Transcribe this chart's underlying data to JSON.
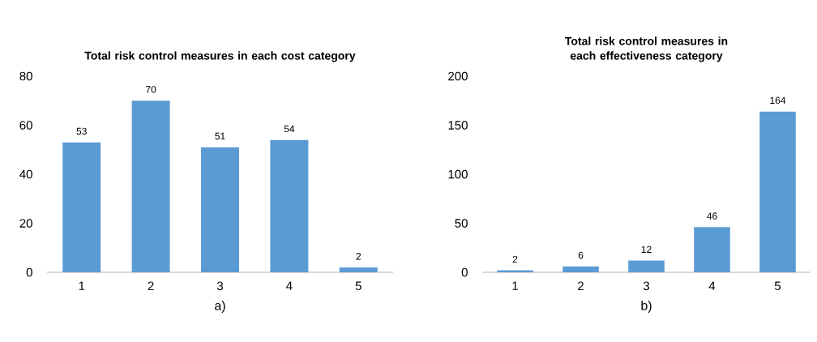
{
  "chart_data": [
    {
      "type": "bar",
      "title": "Total risk control measures in each cost category",
      "xlabel": "a)",
      "categories": [
        "1",
        "2",
        "3",
        "4",
        "5"
      ],
      "values": [
        53,
        70,
        51,
        54,
        2
      ],
      "color": "#5b9bd5",
      "ylim": [
        0,
        80
      ],
      "yticks": [
        0,
        20,
        40,
        60,
        80
      ],
      "data_labels": true,
      "grid": false
    },
    {
      "type": "bar",
      "title": "Total risk control measures in each effectiveness category",
      "xlabel": "b)",
      "categories": [
        "1",
        "2",
        "3",
        "4",
        "5"
      ],
      "values": [
        2,
        6,
        12,
        46,
        164
      ],
      "color": "#5b9bd5",
      "ylim": [
        0,
        200
      ],
      "yticks": [
        0,
        50,
        100,
        150,
        200
      ],
      "data_labels": true,
      "grid": false
    }
  ]
}
